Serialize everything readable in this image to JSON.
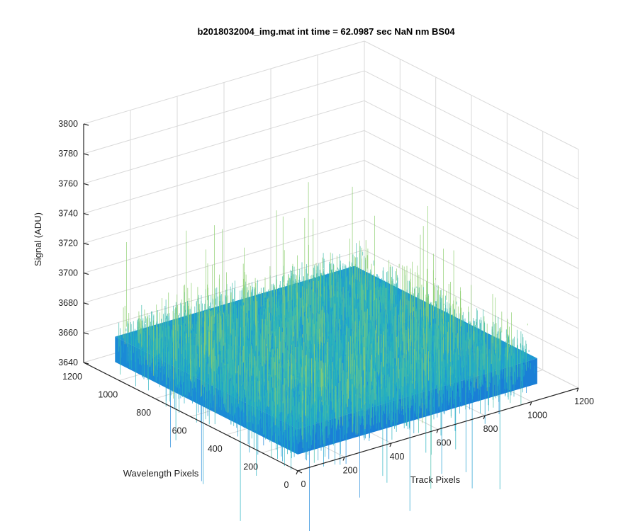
{
  "chart_data": {
    "type": "surface",
    "title": "b2018032004_img.mat int time = 62.0987 sec  NaN nm BS04",
    "xlabel": "Track Pixels",
    "ylabel": "Wavelength Pixels",
    "zlabel": "Signal (ADU)",
    "xlim": [
      0,
      1200
    ],
    "ylim": [
      0,
      1200
    ],
    "zlim": [
      3640,
      3800
    ],
    "x_ticks": [
      "0",
      "200",
      "400",
      "600",
      "800",
      "1000",
      "1200"
    ],
    "y_ticks": [
      "0",
      "200",
      "400",
      "600",
      "800",
      "1000",
      "1200"
    ],
    "z_ticks": [
      "3640",
      "3660",
      "3680",
      "3700",
      "3720",
      "3740",
      "3760",
      "3780",
      "3800"
    ],
    "data_extent": {
      "x": [
        0,
        1024
      ],
      "y": [
        0,
        1024
      ]
    },
    "signal_mean": 3665,
    "signal_spread": 12,
    "grid": true,
    "colormap": [
      "#1066d8",
      "#1a86d9",
      "#1e9fd0",
      "#25b0c0",
      "#3fbcaa",
      "#8ccf6e"
    ]
  }
}
